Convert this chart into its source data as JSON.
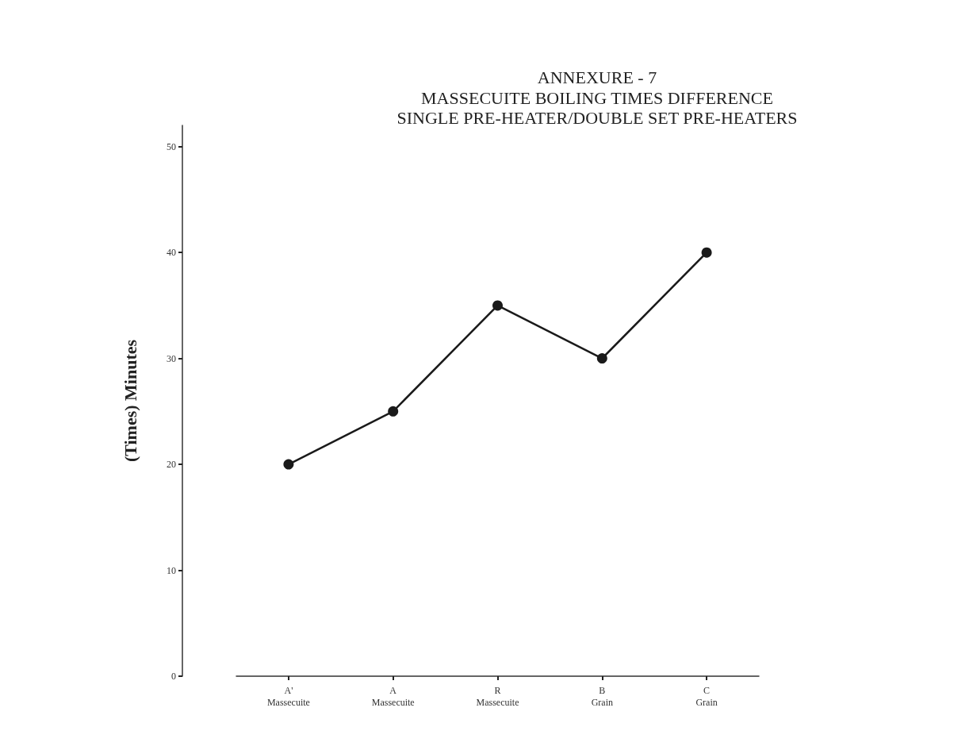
{
  "chart_data": {
    "type": "line",
    "title": "ANNEXURE - 7",
    "subtitle": "MASSECUITE BOILING TIMES DIFFERENCE\nSINGLE PRE-HEATER/DOUBLE SET PRE-HEATERS",
    "ylabel": "(Times) Minutes",
    "categories": [
      "A'\nMassecuite",
      "A\nMassecuite",
      "R\nMassecuite",
      "B\nGrain",
      "C\nGrain"
    ],
    "series": [
      {
        "color": "#1a1a1a",
        "values": [
          20,
          25,
          35,
          30,
          40
        ]
      }
    ],
    "ylim": [
      0,
      52
    ],
    "yticks": [
      0,
      10,
      20,
      30,
      40,
      50
    ],
    "grid": false,
    "marker": "circle",
    "line_style": "solid"
  }
}
